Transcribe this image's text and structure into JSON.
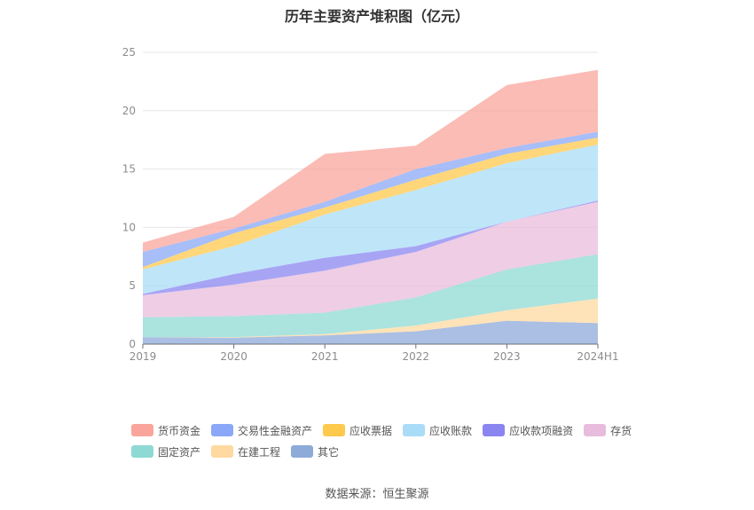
{
  "title": "历年主要资产堆积图（亿元）",
  "source": "数据来源：恒生聚源",
  "chart_data": {
    "type": "area",
    "stacked": true,
    "categories": [
      "2019",
      "2020",
      "2021",
      "2022",
      "2023",
      "2024H1"
    ],
    "ylim": [
      0,
      25
    ],
    "yticks": [
      0,
      5,
      10,
      15,
      20,
      25
    ],
    "grid": true,
    "legend_position": "bottom",
    "series": [
      {
        "name": "其它",
        "color": "#8eaad9",
        "values": [
          0.6,
          0.55,
          0.75,
          1.1,
          2.0,
          1.8
        ]
      },
      {
        "name": "在建工程",
        "color": "#ffd9a0",
        "values": [
          0.0,
          0.05,
          0.1,
          0.5,
          0.9,
          2.1
        ]
      },
      {
        "name": "固定资产",
        "color": "#8fd9d4",
        "values": [
          1.7,
          1.8,
          1.85,
          2.4,
          3.5,
          3.8
        ]
      },
      {
        "name": "存货",
        "color": "#e8bcdc",
        "values": [
          1.9,
          2.7,
          3.6,
          3.9,
          4.1,
          4.5
        ]
      },
      {
        "name": "应收款项融资",
        "color": "#8a85f0",
        "values": [
          0.1,
          0.9,
          1.1,
          0.5,
          0.0,
          0.1
        ]
      },
      {
        "name": "应收账款",
        "color": "#a9dcf7",
        "values": [
          2.1,
          2.4,
          3.7,
          4.8,
          5.0,
          4.8
        ]
      },
      {
        "name": "应收票据",
        "color": "#ffc94d",
        "values": [
          0.2,
          1.1,
          0.6,
          0.9,
          0.8,
          0.6
        ]
      },
      {
        "name": "交易性金融资产",
        "color": "#8aa8f7",
        "values": [
          1.3,
          0.4,
          0.5,
          0.9,
          0.5,
          0.5
        ]
      },
      {
        "name": "货币资金",
        "color": "#f9a59c",
        "values": [
          0.8,
          1.0,
          4.1,
          2.0,
          5.4,
          5.3
        ]
      }
    ]
  },
  "legend_rows": [
    [
      "货币资金",
      "交易性金融资产",
      "应收票据",
      "应收账款",
      "应收款项融资",
      "存货"
    ],
    [
      "固定资产",
      "在建工程",
      "其它"
    ]
  ]
}
